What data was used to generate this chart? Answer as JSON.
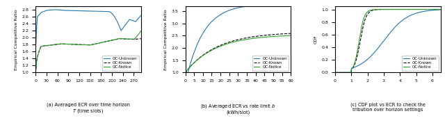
{
  "fig1": {
    "ylabel": "Empirical Competitive Ratio",
    "xlim": [
      0,
      290
    ],
    "ylim": [
      1.0,
      2.9
    ],
    "yticks": [
      1.0,
      1.2,
      1.4,
      1.6,
      1.8,
      2.0,
      2.2,
      2.4,
      2.6,
      2.8
    ],
    "xticks": [
      0,
      30,
      60,
      90,
      120,
      150,
      180,
      210,
      240,
      270
    ],
    "caption": "(a) Averaged ECR over time horizon\n$T$ (time slots)"
  },
  "fig2": {
    "ylabel": "Empirical Competitive Ratio",
    "xlim": [
      0,
      60
    ],
    "ylim": [
      1.0,
      3.7
    ],
    "yticks": [
      1.0,
      1.5,
      2.0,
      2.5,
      3.0,
      3.5
    ],
    "xticks": [
      0,
      5,
      10,
      15,
      20,
      25,
      30,
      35,
      40,
      45,
      50,
      55,
      60
    ],
    "caption": "(b) Averaged ECR vs rate limit $b$\n(kWh/slot)"
  },
  "fig3": {
    "ylabel": "CDF",
    "xlim": [
      0,
      6.5
    ],
    "ylim": [
      0.0,
      1.05
    ],
    "yticks": [
      0.0,
      0.2,
      0.4,
      0.6,
      0.8,
      1.0
    ],
    "xticks": [
      0,
      1,
      2,
      3,
      4,
      5,
      6
    ],
    "caption": "(c) CDF plot vs ECR to check the\ntribution over horizon settings"
  },
  "colors": {
    "unknown": "#1f77b4",
    "known": "#000000",
    "notice": "#2ca02c"
  },
  "legend_labels": [
    "OC-Unknown",
    "OC-Known",
    "OC-Notice"
  ]
}
